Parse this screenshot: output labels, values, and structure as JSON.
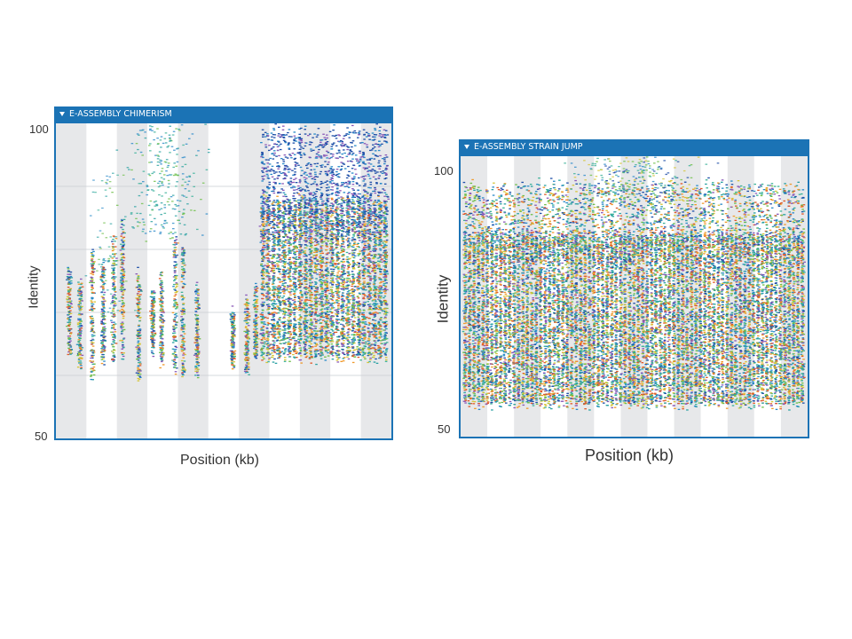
{
  "chart_data": [
    {
      "type": "scatter",
      "title": "E-ASSEMBLY CHIMERISM",
      "xlabel": "Position (kb)",
      "ylabel": "Identity",
      "ytick_labels": [
        "100",
        "50"
      ],
      "ylim": [
        50,
        100
      ],
      "grid": true,
      "legend": "none",
      "background_bands": "alternating light gray / white vertical bands",
      "point_colors": [
        "#1f4fa8",
        "#2a8ac9",
        "#3cb29a",
        "#6fbf4a",
        "#e05a2a",
        "#f09a2c",
        "#8a5ab8",
        "#d6c53a",
        "#2aa1a3"
      ],
      "description_of_distribution": {
        "left_region_x_fraction": [
          0,
          0.62
        ],
        "left_region_identity_range": [
          60,
          82
        ],
        "left_region_sparse_high_identity": [
          85,
          100
        ],
        "right_region_x_fraction": [
          0.62,
          1.0
        ],
        "right_region_identity_range": [
          62,
          100
        ]
      }
    },
    {
      "type": "scatter",
      "title": "E-ASSEMBLY STRAIN JUMP",
      "xlabel": "Position (kb)",
      "ylabel": "Identity",
      "ytick_labels": [
        "100",
        "50"
      ],
      "ylim": [
        50,
        100
      ],
      "grid": false,
      "legend": "none",
      "background_bands": "alternating light gray / white vertical bands",
      "point_colors": [
        "#1f4fa8",
        "#2a8ac9",
        "#3cb29a",
        "#6fbf4a",
        "#e05a2a",
        "#f09a2c",
        "#8a5ab8",
        "#d6c53a",
        "#2aa1a3"
      ],
      "description_of_distribution": {
        "dense_identity_range": [
          55,
          92
        ],
        "sparse_high_identity": [
          92,
          100
        ]
      }
    }
  ]
}
